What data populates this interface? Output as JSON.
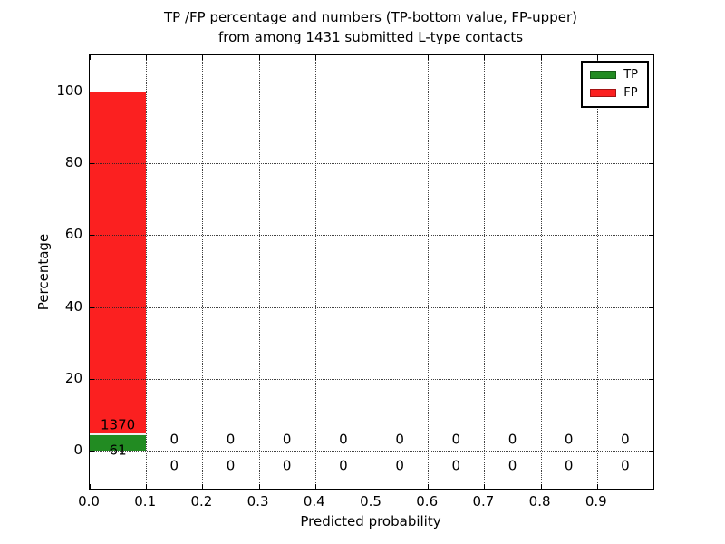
{
  "figure": {
    "title_line1": "TP /FP percentage and numbers (TP-bottom value, FP-upper)",
    "title_line2": "from among 1431 submitted L-type contacts"
  },
  "axes": {
    "xlabel": "Predicted probability",
    "ylabel": "Percentage"
  },
  "legend": {
    "position": "upper right",
    "items": [
      {
        "label": "TP",
        "color": "#228b22"
      },
      {
        "label": "FP",
        "color": "#fb2020"
      }
    ]
  },
  "chart_data": {
    "type": "bar",
    "stacked": true,
    "title": "TP /FP percentage and numbers (TP-bottom value, FP-upper) from among 1431 submitted L-type contacts",
    "xlabel": "Predicted probability",
    "ylabel": "Percentage",
    "total_submitted": 1431,
    "xlim": [
      0.0,
      1.0
    ],
    "ylim": [
      -10.5,
      110
    ],
    "xticks": {
      "values": [
        0.0,
        0.1,
        0.2,
        0.3,
        0.4,
        0.5,
        0.6,
        0.7,
        0.8,
        0.9
      ],
      "labels": [
        "0.0",
        "0.1",
        "0.2",
        "0.3",
        "0.4",
        "0.5",
        "0.6",
        "0.7",
        "0.8",
        "0.9"
      ]
    },
    "yticks": {
      "values": [
        0,
        20,
        40,
        60,
        80,
        100
      ],
      "labels": [
        "0",
        "20",
        "40",
        "60",
        "80",
        "100"
      ]
    },
    "bin_width": 0.1,
    "bin_starts": [
      0.0,
      0.1,
      0.2,
      0.3,
      0.4,
      0.5,
      0.6,
      0.7,
      0.8,
      0.9
    ],
    "series": [
      {
        "name": "TP",
        "color": "#228b22",
        "pct": [
          4.26,
          0,
          0,
          0,
          0,
          0,
          0,
          0,
          0,
          0
        ],
        "counts": [
          61,
          0,
          0,
          0,
          0,
          0,
          0,
          0,
          0,
          0
        ]
      },
      {
        "name": "FP",
        "color": "#fb2020",
        "pct": [
          95.74,
          0,
          0,
          0,
          0,
          0,
          0,
          0,
          0,
          0
        ],
        "counts": [
          1370,
          0,
          0,
          0,
          0,
          0,
          0,
          0,
          0,
          0
        ]
      }
    ],
    "annotation_value_offsets": {
      "fp": 3.0,
      "tp": -4.2
    },
    "grid": "dotted",
    "tick_direction": "in",
    "legend_position": "upper right"
  }
}
